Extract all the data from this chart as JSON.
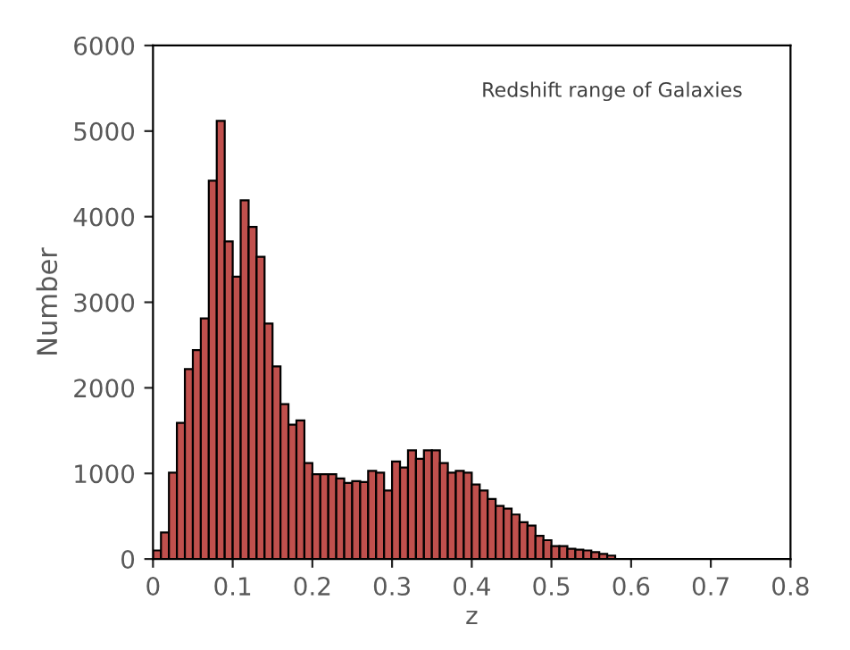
{
  "chart_data": {
    "type": "histogram",
    "xlabel": "z",
    "ylabel": "Number",
    "annotations": [
      "Redshift range of Galaxies"
    ],
    "bins": [
      0,
      0.01,
      0.02,
      0.03,
      0.04,
      0.05,
      0.06,
      0.07,
      0.08,
      0.09,
      0.1,
      0.11,
      0.12,
      0.13,
      0.14,
      0.15,
      0.16,
      0.17,
      0.18,
      0.19,
      0.2,
      0.21,
      0.22,
      0.23,
      0.24,
      0.25,
      0.26,
      0.27,
      0.28,
      0.29,
      0.3,
      0.31,
      0.32,
      0.33,
      0.34,
      0.35,
      0.36,
      0.37,
      0.38,
      0.39,
      0.4,
      0.41,
      0.42,
      0.43,
      0.44,
      0.45,
      0.46,
      0.47,
      0.48,
      0.49,
      0.5,
      0.51,
      0.52,
      0.53,
      0.54,
      0.55,
      0.56,
      0.57,
      0.58,
      0.59,
      0.6,
      0.61,
      0.62,
      0.63,
      0.64,
      0.65,
      0.66,
      0.67,
      0.68,
      0.69,
      0.7,
      0.71,
      0.72,
      0.73,
      0.74,
      0.75,
      0.76,
      0.77,
      0.78,
      0.79,
      0.8
    ],
    "values": [
      100,
      310,
      1010,
      1590,
      2220,
      2440,
      2810,
      4420,
      5120,
      3710,
      3300,
      4190,
      3880,
      3530,
      2750,
      2250,
      1810,
      1570,
      1620,
      1120,
      990,
      990,
      990,
      940,
      890,
      910,
      900,
      1030,
      1010,
      800,
      1140,
      1070,
      1270,
      1170,
      1270,
      1270,
      1120,
      1010,
      1030,
      1010,
      870,
      800,
      700,
      620,
      590,
      520,
      430,
      390,
      270,
      220,
      150,
      150,
      120,
      110,
      100,
      80,
      60,
      40,
      0,
      0,
      0,
      0,
      0,
      0,
      0,
      0,
      0,
      0,
      0,
      0,
      0,
      0,
      0,
      0,
      0,
      0,
      0,
      0,
      0,
      0
    ],
    "color": "#c0504d",
    "xlim": [
      0,
      0.8
    ],
    "xticks": [
      0,
      0.1,
      0.2,
      0.3,
      0.4,
      0.5,
      0.6,
      0.7,
      0.8
    ],
    "ylim": [
      0,
      6000
    ],
    "yticks": [
      0,
      1000,
      2000,
      3000,
      4000,
      5000,
      6000
    ],
    "grid": false,
    "legend": false
  }
}
